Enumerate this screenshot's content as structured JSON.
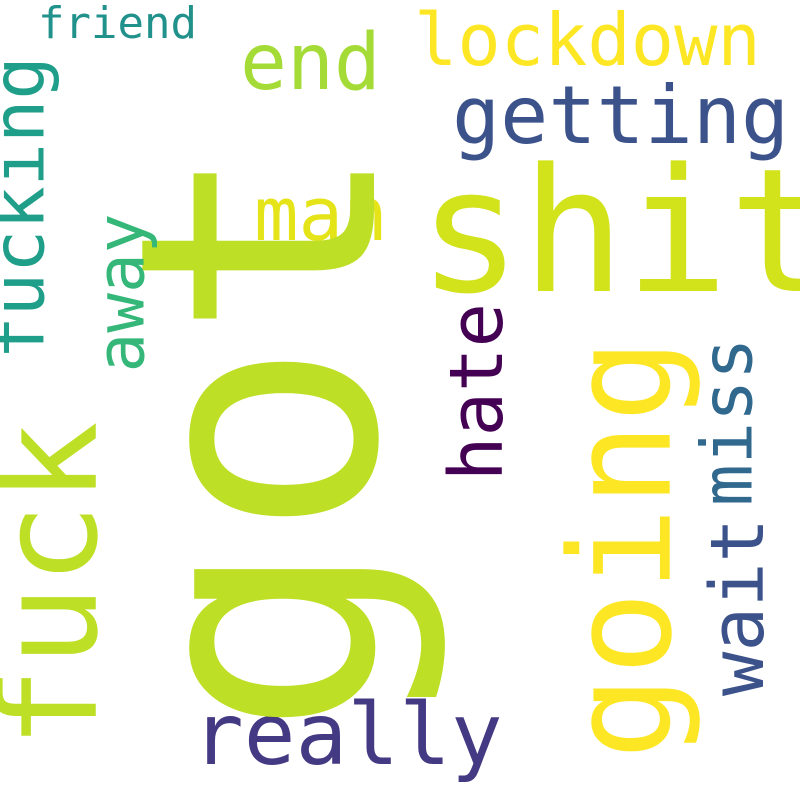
{
  "words": {
    "got": {
      "text": "got",
      "color": "#bddf26"
    },
    "fuck": {
      "text": "fuck",
      "color": "#bddf26"
    },
    "shit": {
      "text": "shit",
      "color": "#d2e21b"
    },
    "going": {
      "text": "going",
      "color": "#fde725"
    },
    "lockdown": {
      "text": "lockdown",
      "color": "#fde725"
    },
    "getting": {
      "text": "getting",
      "color": "#3b528b"
    },
    "end": {
      "text": "end",
      "color": "#a5db36"
    },
    "friend": {
      "text": "friend",
      "color": "#21918c"
    },
    "fucking": {
      "text": "fucking",
      "color": "#1f9e89"
    },
    "away": {
      "text": "away",
      "color": "#35b779"
    },
    "man": {
      "text": "man",
      "color": "#e5e419"
    },
    "hate": {
      "text": "hate",
      "color": "#440154"
    },
    "miss": {
      "text": "miss",
      "color": "#31688e"
    },
    "wait": {
      "text": "wait",
      "color": "#3b528b"
    },
    "really": {
      "text": "really",
      "color": "#443983"
    }
  }
}
